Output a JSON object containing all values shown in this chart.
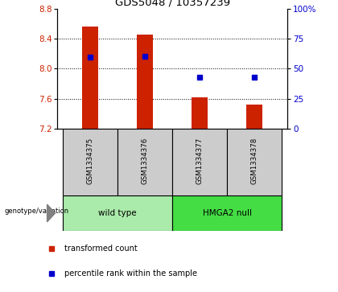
{
  "title": "GDS5048 / 10357239",
  "samples": [
    "GSM1334375",
    "GSM1334376",
    "GSM1334377",
    "GSM1334378"
  ],
  "bar_bottoms": [
    7.2,
    7.2,
    7.2,
    7.2
  ],
  "bar_tops": [
    8.56,
    8.46,
    7.62,
    7.52
  ],
  "percentile_values": [
    8.15,
    8.16,
    7.88,
    7.88
  ],
  "ylim_left": [
    7.2,
    8.8
  ],
  "ylim_right": [
    0,
    100
  ],
  "yticks_left": [
    7.2,
    7.6,
    8.0,
    8.4,
    8.8
  ],
  "yticks_right": [
    0,
    25,
    50,
    75,
    100
  ],
  "ytick_labels_right": [
    "0",
    "25",
    "50",
    "75",
    "100%"
  ],
  "grid_vals": [
    7.6,
    8.0,
    8.4
  ],
  "bar_color": "#cc2200",
  "dot_color": "#0000cc",
  "genotype_groups": [
    {
      "label": "wild type",
      "samples": [
        0,
        1
      ],
      "color": "#aaeaaa"
    },
    {
      "label": "HMGA2 null",
      "samples": [
        2,
        3
      ],
      "color": "#44dd44"
    }
  ],
  "bg_color": "#ffffff",
  "label_bg": "#cccccc",
  "legend_items": [
    {
      "label": "transformed count",
      "color": "#cc2200"
    },
    {
      "label": "percentile rank within the sample",
      "color": "#0000cc"
    }
  ],
  "bar_width": 0.3
}
